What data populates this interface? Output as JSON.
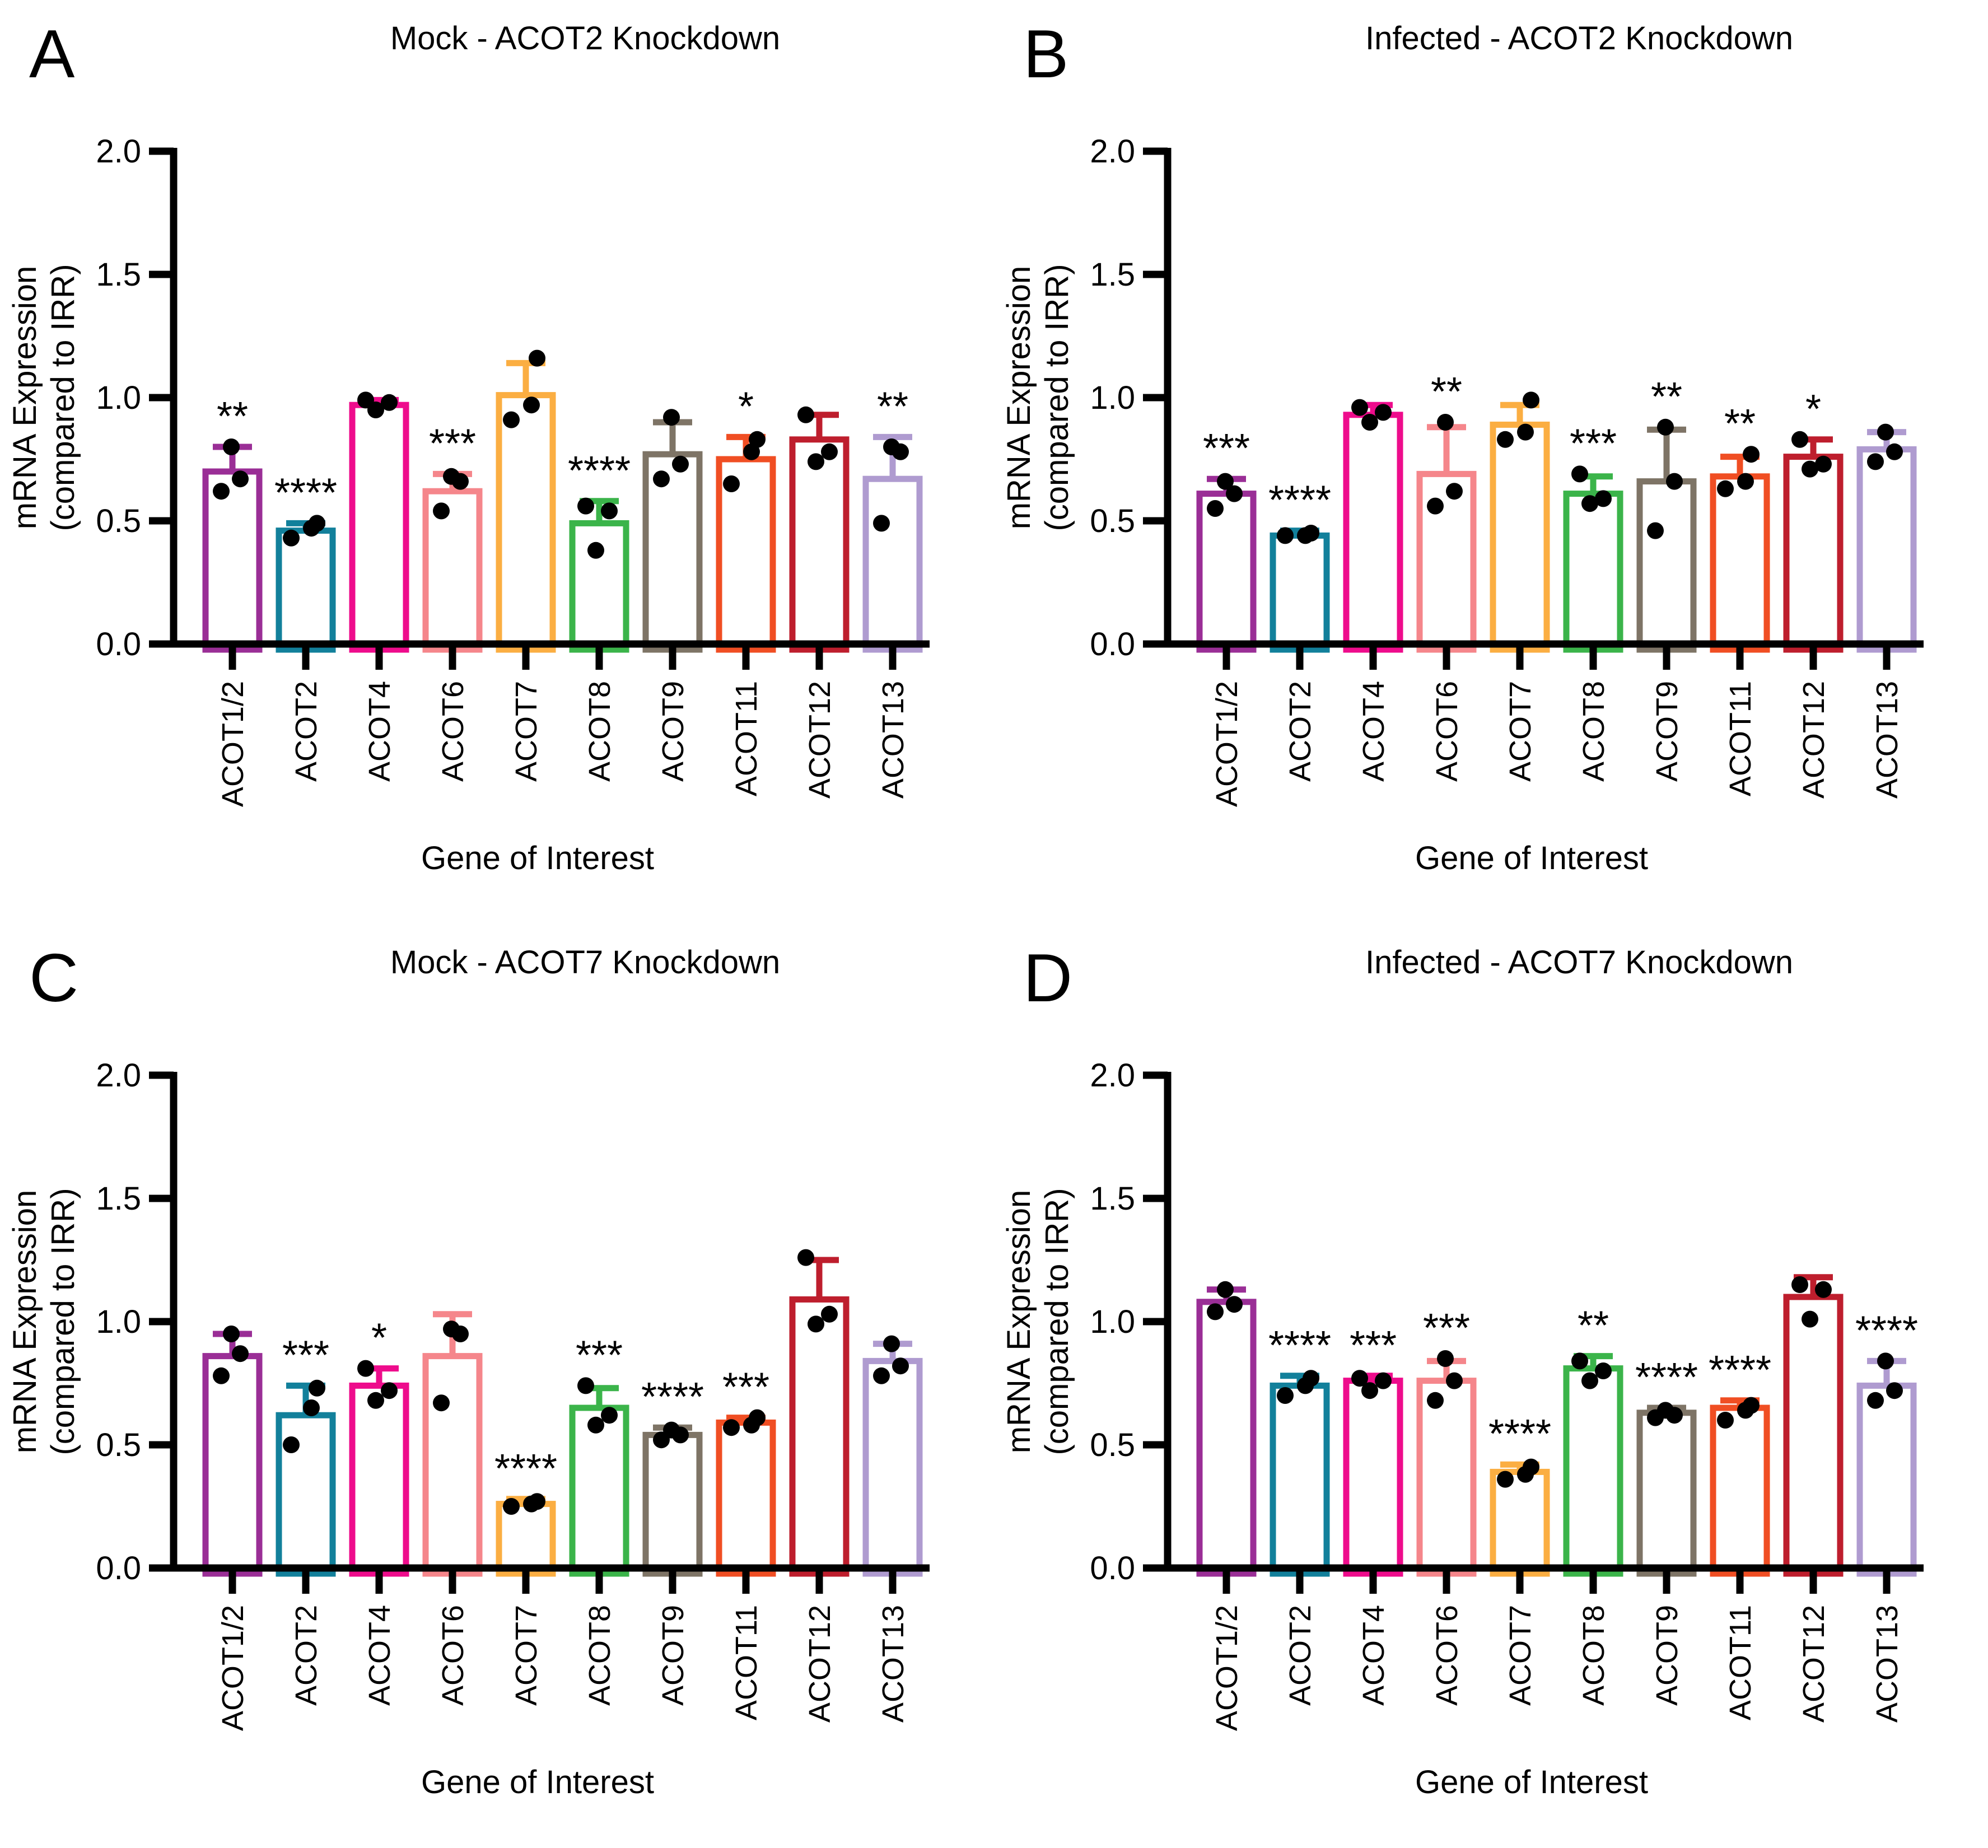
{
  "chart_data": [
    {
      "type": "bar",
      "panel": "A",
      "title": "Mock - ACOT2 Knockdown",
      "xlabel": "Gene of Interest",
      "ylabel_line1": "mRNA Expression",
      "ylabel_line2": "(compared to IRR)",
      "ylim": [
        0,
        2
      ],
      "yticks": [
        "0.0",
        "0.5",
        "1.0",
        "1.5",
        "2.0"
      ],
      "grid": false,
      "bars": [
        {
          "gene": "ACOT1/2",
          "color": "#9A2E96",
          "mean": 0.7,
          "err": 0.8,
          "points": [
            0.62,
            0.67,
            0.8
          ],
          "sig": "**"
        },
        {
          "gene": "ACOT2",
          "color": "#12809B",
          "mean": 0.46,
          "err": 0.49,
          "points": [
            0.43,
            0.47,
            0.49
          ],
          "sig": "****"
        },
        {
          "gene": "ACOT4",
          "color": "#EE0C8C",
          "mean": 0.97,
          "err": 0.99,
          "points": [
            0.95,
            0.98,
            0.99
          ],
          "sig": null
        },
        {
          "gene": "ACOT6",
          "color": "#F5868B",
          "mean": 0.62,
          "err": 0.69,
          "points": [
            0.54,
            0.66,
            0.68
          ],
          "sig": "***"
        },
        {
          "gene": "ACOT7",
          "color": "#FBAE42",
          "mean": 1.01,
          "err": 1.14,
          "points": [
            0.91,
            0.97,
            1.16
          ],
          "sig": null
        },
        {
          "gene": "ACOT8",
          "color": "#3BB44A",
          "mean": 0.49,
          "err": 0.58,
          "points": [
            0.38,
            0.54,
            0.56
          ],
          "sig": "****"
        },
        {
          "gene": "ACOT9",
          "color": "#7E7466",
          "mean": 0.77,
          "err": 0.9,
          "points": [
            0.67,
            0.73,
            0.92
          ],
          "sig": null
        },
        {
          "gene": "ACOT11",
          "color": "#F04E23",
          "mean": 0.75,
          "err": 0.84,
          "points": [
            0.65,
            0.78,
            0.83
          ],
          "sig": "*"
        },
        {
          "gene": "ACOT12",
          "color": "#BE1E2D",
          "mean": 0.83,
          "err": 0.93,
          "points": [
            0.74,
            0.78,
            0.93
          ],
          "sig": null
        },
        {
          "gene": "ACOT13",
          "color": "#AF9BD0",
          "mean": 0.67,
          "err": 0.84,
          "points": [
            0.49,
            0.78,
            0.8
          ],
          "sig": "**"
        }
      ]
    },
    {
      "type": "bar",
      "panel": "B",
      "title": "Infected - ACOT2 Knockdown",
      "xlabel": "Gene of Interest",
      "ylabel_line1": "mRNA Expression",
      "ylabel_line2": "(compared to IRR)",
      "ylim": [
        0,
        2
      ],
      "yticks": [
        "0.0",
        "0.5",
        "1.0",
        "1.5",
        "2.0"
      ],
      "grid": false,
      "bars": [
        {
          "gene": "ACOT1/2",
          "color": "#9A2E96",
          "mean": 0.61,
          "err": 0.67,
          "points": [
            0.55,
            0.61,
            0.66
          ],
          "sig": "***"
        },
        {
          "gene": "ACOT2",
          "color": "#12809B",
          "mean": 0.44,
          "err": 0.46,
          "points": [
            0.44,
            0.44,
            0.45
          ],
          "sig": "****"
        },
        {
          "gene": "ACOT4",
          "color": "#EE0C8C",
          "mean": 0.93,
          "err": 0.97,
          "points": [
            0.9,
            0.94,
            0.96
          ],
          "sig": null
        },
        {
          "gene": "ACOT6",
          "color": "#F5868B",
          "mean": 0.69,
          "err": 0.88,
          "points": [
            0.56,
            0.62,
            0.9
          ],
          "sig": "**"
        },
        {
          "gene": "ACOT7",
          "color": "#FBAE42",
          "mean": 0.89,
          "err": 0.97,
          "points": [
            0.83,
            0.86,
            0.99
          ],
          "sig": null
        },
        {
          "gene": "ACOT8",
          "color": "#3BB44A",
          "mean": 0.61,
          "err": 0.68,
          "points": [
            0.57,
            0.59,
            0.69
          ],
          "sig": "***"
        },
        {
          "gene": "ACOT9",
          "color": "#7E7466",
          "mean": 0.66,
          "err": 0.87,
          "points": [
            0.46,
            0.66,
            0.88
          ],
          "sig": "**"
        },
        {
          "gene": "ACOT11",
          "color": "#F04E23",
          "mean": 0.68,
          "err": 0.76,
          "points": [
            0.63,
            0.66,
            0.77
          ],
          "sig": "**"
        },
        {
          "gene": "ACOT12",
          "color": "#BE1E2D",
          "mean": 0.76,
          "err": 0.83,
          "points": [
            0.71,
            0.73,
            0.83
          ],
          "sig": "*"
        },
        {
          "gene": "ACOT13",
          "color": "#AF9BD0",
          "mean": 0.79,
          "err": 0.86,
          "points": [
            0.74,
            0.78,
            0.86
          ],
          "sig": null
        }
      ]
    },
    {
      "type": "bar",
      "panel": "C",
      "title": "Mock - ACOT7 Knockdown",
      "xlabel": "Gene of Interest",
      "ylabel_line1": "mRNA Expression",
      "ylabel_line2": "(compared to IRR)",
      "ylim": [
        0,
        2
      ],
      "yticks": [
        "0.0",
        "0.5",
        "1.0",
        "1.5",
        "2.0"
      ],
      "grid": false,
      "bars": [
        {
          "gene": "ACOT1/2",
          "color": "#9A2E96",
          "mean": 0.86,
          "err": 0.95,
          "points": [
            0.78,
            0.87,
            0.95
          ],
          "sig": null
        },
        {
          "gene": "ACOT2",
          "color": "#12809B",
          "mean": 0.62,
          "err": 0.74,
          "points": [
            0.5,
            0.65,
            0.73
          ],
          "sig": "***"
        },
        {
          "gene": "ACOT4",
          "color": "#EE0C8C",
          "mean": 0.74,
          "err": 0.81,
          "points": [
            0.68,
            0.72,
            0.81
          ],
          "sig": "*"
        },
        {
          "gene": "ACOT6",
          "color": "#F5868B",
          "mean": 0.86,
          "err": 1.03,
          "points": [
            0.67,
            0.95,
            0.97
          ],
          "sig": null
        },
        {
          "gene": "ACOT7",
          "color": "#FBAE42",
          "mean": 0.26,
          "err": 0.28,
          "points": [
            0.25,
            0.26,
            0.27
          ],
          "sig": "****"
        },
        {
          "gene": "ACOT8",
          "color": "#3BB44A",
          "mean": 0.65,
          "err": 0.73,
          "points": [
            0.58,
            0.62,
            0.74
          ],
          "sig": "***"
        },
        {
          "gene": "ACOT9",
          "color": "#7E7466",
          "mean": 0.54,
          "err": 0.57,
          "points": [
            0.52,
            0.54,
            0.56
          ],
          "sig": "****"
        },
        {
          "gene": "ACOT11",
          "color": "#F04E23",
          "mean": 0.59,
          "err": 0.61,
          "points": [
            0.57,
            0.58,
            0.61
          ],
          "sig": "***"
        },
        {
          "gene": "ACOT12",
          "color": "#BE1E2D",
          "mean": 1.09,
          "err": 1.25,
          "points": [
            0.99,
            1.03,
            1.26
          ],
          "sig": null
        },
        {
          "gene": "ACOT13",
          "color": "#AF9BD0",
          "mean": 0.84,
          "err": 0.91,
          "points": [
            0.78,
            0.82,
            0.91
          ],
          "sig": null
        }
      ]
    },
    {
      "type": "bar",
      "panel": "D",
      "title": "Infected - ACOT7 Knockdown",
      "xlabel": "Gene of Interest",
      "ylabel_line1": "mRNA Expression",
      "ylabel_line2": "(compared to IRR)",
      "ylim": [
        0,
        2
      ],
      "yticks": [
        "0.0",
        "0.5",
        "1.0",
        "1.5",
        "2.0"
      ],
      "grid": false,
      "bars": [
        {
          "gene": "ACOT1/2",
          "color": "#9A2E96",
          "mean": 1.08,
          "err": 1.13,
          "points": [
            1.04,
            1.07,
            1.13
          ],
          "sig": null
        },
        {
          "gene": "ACOT2",
          "color": "#12809B",
          "mean": 0.74,
          "err": 0.78,
          "points": [
            0.7,
            0.74,
            0.77
          ],
          "sig": "****"
        },
        {
          "gene": "ACOT4",
          "color": "#EE0C8C",
          "mean": 0.76,
          "err": 0.78,
          "points": [
            0.72,
            0.76,
            0.77
          ],
          "sig": "***"
        },
        {
          "gene": "ACOT6",
          "color": "#F5868B",
          "mean": 0.76,
          "err": 0.84,
          "points": [
            0.68,
            0.76,
            0.85
          ],
          "sig": "***"
        },
        {
          "gene": "ACOT7",
          "color": "#FBAE42",
          "mean": 0.39,
          "err": 0.42,
          "points": [
            0.36,
            0.38,
            0.41
          ],
          "sig": "****"
        },
        {
          "gene": "ACOT8",
          "color": "#3BB44A",
          "mean": 0.81,
          "err": 0.86,
          "points": [
            0.76,
            0.8,
            0.84
          ],
          "sig": "**"
        },
        {
          "gene": "ACOT9",
          "color": "#7E7466",
          "mean": 0.63,
          "err": 0.65,
          "points": [
            0.61,
            0.62,
            0.64
          ],
          "sig": "****"
        },
        {
          "gene": "ACOT11",
          "color": "#F04E23",
          "mean": 0.65,
          "err": 0.68,
          "points": [
            0.6,
            0.64,
            0.66
          ],
          "sig": "****"
        },
        {
          "gene": "ACOT12",
          "color": "#BE1E2D",
          "mean": 1.1,
          "err": 1.18,
          "points": [
            1.01,
            1.13,
            1.15
          ],
          "sig": null
        },
        {
          "gene": "ACOT13",
          "color": "#AF9BD0",
          "mean": 0.74,
          "err": 0.84,
          "points": [
            0.68,
            0.72,
            0.84
          ],
          "sig": "****"
        }
      ]
    }
  ]
}
